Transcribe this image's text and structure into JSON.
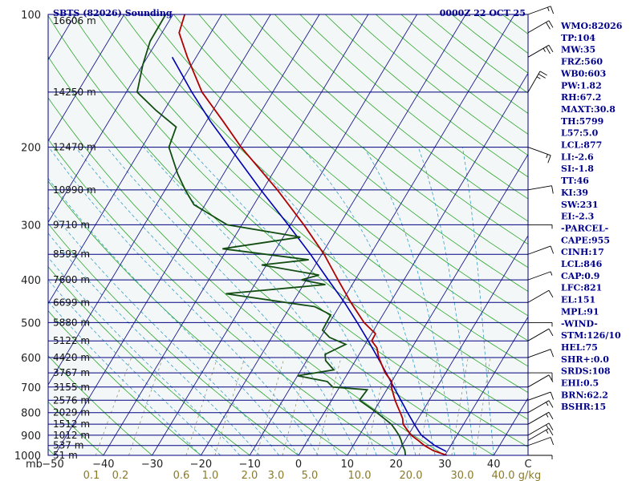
{
  "header": {
    "left_title": "SBTS (82026) Sounding",
    "right_title": "0000Z 22 OCT 25"
  },
  "indices": [
    "WMO:82026",
    "TP:104",
    "MW:35",
    "FRZ:560",
    "WB0:603",
    "PW:1.82",
    "RH:67.2",
    "MAXT:30.8",
    "TH:5799",
    "L57:5.0",
    "LCL:877",
    "LI:-2.6",
    "SI:-1.8",
    "TT:46",
    "KI:39",
    "SW:231",
    "EI:-2.3",
    "-PARCEL-",
    "CAPE:955",
    "CINH:17",
    "LCL:846",
    "CAP:0.9",
    "LFC:821",
    "EL:151",
    "MPL:91",
    "-WIND-",
    "STM:126/10",
    "HEL:75",
    "SHR+:0.0",
    "SRDS:108",
    "EHI:0.5",
    "BRN:62.2",
    "BSHR:15"
  ],
  "colors": {
    "background": "#ffffff",
    "plot_background": "#f4f7f8",
    "isobar": "#00007f",
    "isotherm": "#1a1a8c",
    "dry_adiabat": "#2aa82a",
    "moist_adiabat": "#3aa0c8",
    "mixing_ratio": "#8b8b6a",
    "temperature": "#b00000",
    "dewpoint": "#124d12",
    "parcel": "#0000b4",
    "wind": "#000000",
    "text": "#00008b"
  },
  "chart_data": {
    "type": "skew-t",
    "xlabel": "C",
    "pressure_unit": "mb",
    "mixing_unit": "g/kg",
    "pressure_levels": [
      100,
      150,
      200,
      250,
      300,
      350,
      400,
      450,
      500,
      550,
      600,
      650,
      700,
      750,
      800,
      850,
      900,
      950,
      1000
    ],
    "pressure_tick_labels": [
      {
        "p": 100,
        "text": "100"
      },
      {
        "p": 200,
        "text": "200"
      },
      {
        "p": 300,
        "text": "300"
      },
      {
        "p": 400,
        "text": "400"
      },
      {
        "p": 500,
        "text": "500"
      },
      {
        "p": 600,
        "text": "600"
      },
      {
        "p": 700,
        "text": "700"
      },
      {
        "p": 800,
        "text": "800"
      },
      {
        "p": 900,
        "text": "900"
      },
      {
        "p": 1000,
        "text": "1000"
      }
    ],
    "height_labels": [
      {
        "p": 100,
        "text": "16606 m"
      },
      {
        "p": 150,
        "text": "14250 m"
      },
      {
        "p": 200,
        "text": "12470 m"
      },
      {
        "p": 250,
        "text": "10990 m"
      },
      {
        "p": 300,
        "text": "9710 m"
      },
      {
        "p": 350,
        "text": "8593 m"
      },
      {
        "p": 400,
        "text": "7600 m"
      },
      {
        "p": 450,
        "text": "6699 m"
      },
      {
        "p": 500,
        "text": "5880 m"
      },
      {
        "p": 550,
        "text": "5122 m"
      },
      {
        "p": 600,
        "text": "4420 m"
      },
      {
        "p": 650,
        "text": "3767 m"
      },
      {
        "p": 700,
        "text": "3155 m"
      },
      {
        "p": 750,
        "text": "2576 m"
      },
      {
        "p": 800,
        "text": "2029 m"
      },
      {
        "p": 850,
        "text": "1512 m"
      },
      {
        "p": 900,
        "text": "1012 m"
      },
      {
        "p": 950,
        "text": "537 m"
      },
      {
        "p": 1000,
        "text": "51 m"
      }
    ],
    "temperature_ticks": [
      -40,
      -30,
      -20,
      -10,
      0,
      10,
      20,
      30,
      40
    ],
    "temperature_tick_labels": [
      "−40",
      "−30",
      "−20",
      "−10",
      "0",
      "10",
      "20",
      "30",
      "40"
    ],
    "left_tick_labels": [
      "mb",
      "−50"
    ],
    "mixing_ratio_labels": [
      {
        "w": 0.1,
        "text": "0.1"
      },
      {
        "w": 0.2,
        "text": "0.2"
      },
      {
        "w": 0.6,
        "text": "0.6"
      },
      {
        "w": 1.0,
        "text": "1.0"
      },
      {
        "w": 2.0,
        "text": "2.0"
      },
      {
        "w": 3.0,
        "text": "3.0"
      },
      {
        "w": 5.0,
        "text": "5.0"
      },
      {
        "w": 10.0,
        "text": "10.0"
      },
      {
        "w": 20.0,
        "text": "20.0"
      },
      {
        "w": 30.0,
        "text": "30.0"
      },
      {
        "w": 40.0,
        "text": "40.0"
      }
    ],
    "temperature_profile": [
      {
        "p": 1000,
        "t": 30.4
      },
      {
        "p": 975,
        "t": 27.0
      },
      {
        "p": 950,
        "t": 24.6
      },
      {
        "p": 925,
        "t": 22.7
      },
      {
        "p": 900,
        "t": 20.6
      },
      {
        "p": 875,
        "t": 19.1
      },
      {
        "p": 850,
        "t": 17.6
      },
      {
        "p": 825,
        "t": 16.8
      },
      {
        "p": 800,
        "t": 15.6
      },
      {
        "p": 775,
        "t": 14.3
      },
      {
        "p": 750,
        "t": 13.0
      },
      {
        "p": 700,
        "t": 10.6
      },
      {
        "p": 680,
        "t": 10.0
      },
      {
        "p": 650,
        "t": 7.6
      },
      {
        "p": 600,
        "t": 4.4
      },
      {
        "p": 570,
        "t": 2.8
      },
      {
        "p": 550,
        "t": 0.9
      },
      {
        "p": 530,
        "t": 0.8
      },
      {
        "p": 500,
        "t": -2.9
      },
      {
        "p": 450,
        "t": -8.1
      },
      {
        "p": 400,
        "t": -13.5
      },
      {
        "p": 370,
        "t": -17.0
      },
      {
        "p": 350,
        "t": -19.5
      },
      {
        "p": 300,
        "t": -27.3
      },
      {
        "p": 250,
        "t": -37.0
      },
      {
        "p": 200,
        "t": -49.7
      },
      {
        "p": 175,
        "t": -56.5
      },
      {
        "p": 150,
        "t": -64.5
      },
      {
        "p": 125,
        "t": -71.8
      },
      {
        "p": 110,
        "t": -76.5
      },
      {
        "p": 100,
        "t": -77.6
      }
    ],
    "dewpoint_profile": [
      {
        "p": 1000,
        "t": 21.9
      },
      {
        "p": 975,
        "t": 21.2
      },
      {
        "p": 950,
        "t": 20.1
      },
      {
        "p": 925,
        "t": 19.2
      },
      {
        "p": 900,
        "t": 18.1
      },
      {
        "p": 875,
        "t": 16.7
      },
      {
        "p": 850,
        "t": 15.2
      },
      {
        "p": 800,
        "t": 10.8
      },
      {
        "p": 750,
        "t": 5.7
      },
      {
        "p": 710,
        "t": 6.0
      },
      {
        "p": 700,
        "t": -1.4
      },
      {
        "p": 680,
        "t": -3.2
      },
      {
        "p": 660,
        "t": -10.0
      },
      {
        "p": 640,
        "t": -3.3
      },
      {
        "p": 610,
        "t": -6.1
      },
      {
        "p": 590,
        "t": -7.0
      },
      {
        "p": 560,
        "t": -4.0
      },
      {
        "p": 540,
        "t": -8.2
      },
      {
        "p": 520,
        "t": -10.5
      },
      {
        "p": 480,
        "t": -10.7
      },
      {
        "p": 460,
        "t": -15.0
      },
      {
        "p": 430,
        "t": -34.8
      },
      {
        "p": 410,
        "t": -15.5
      },
      {
        "p": 400,
        "t": -21.0
      },
      {
        "p": 390,
        "t": -18.0
      },
      {
        "p": 370,
        "t": -31.0
      },
      {
        "p": 360,
        "t": -22.0
      },
      {
        "p": 340,
        "t": -41.0
      },
      {
        "p": 320,
        "t": -26.5
      },
      {
        "p": 300,
        "t": -43.0
      },
      {
        "p": 270,
        "t": -52.3
      },
      {
        "p": 250,
        "t": -55.9
      },
      {
        "p": 230,
        "t": -59.4
      },
      {
        "p": 200,
        "t": -64.5
      },
      {
        "p": 180,
        "t": -65.5
      },
      {
        "p": 165,
        "t": -71.7
      },
      {
        "p": 150,
        "t": -77.8
      },
      {
        "p": 130,
        "t": -80.0
      },
      {
        "p": 115,
        "t": -81.4
      },
      {
        "p": 100,
        "t": -81.5
      }
    ],
    "parcel_profile": [
      {
        "p": 980,
        "t": 29.8
      },
      {
        "p": 950,
        "t": 26.7
      },
      {
        "p": 900,
        "t": 22.7
      },
      {
        "p": 877,
        "t": 21.4
      },
      {
        "p": 850,
        "t": 19.9
      },
      {
        "p": 800,
        "t": 17.1
      },
      {
        "p": 750,
        "t": 14.2
      },
      {
        "p": 700,
        "t": 11.1
      },
      {
        "p": 650,
        "t": 7.8
      },
      {
        "p": 600,
        "t": 4.2
      },
      {
        "p": 550,
        "t": 0.2
      },
      {
        "p": 500,
        "t": -4.3
      },
      {
        "p": 450,
        "t": -9.4
      },
      {
        "p": 400,
        "t": -15.5
      },
      {
        "p": 350,
        "t": -22.3
      },
      {
        "p": 300,
        "t": -30.5
      },
      {
        "p": 250,
        "t": -40.4
      },
      {
        "p": 200,
        "t": -52.1
      },
      {
        "p": 175,
        "t": -59.1
      },
      {
        "p": 150,
        "t": -66.6
      },
      {
        "p": 125,
        "t": -74.9
      }
    ],
    "wind_barbs": [
      {
        "p": 1000,
        "dir": 90,
        "spd": 5
      },
      {
        "p": 950,
        "dir": 70,
        "spd": 10
      },
      {
        "p": 925,
        "dir": 60,
        "spd": 15
      },
      {
        "p": 900,
        "dir": 60,
        "spd": 15
      },
      {
        "p": 850,
        "dir": 60,
        "spd": 15
      },
      {
        "p": 800,
        "dir": 60,
        "spd": 15
      },
      {
        "p": 750,
        "dir": 70,
        "spd": 10
      },
      {
        "p": 700,
        "dir": 60,
        "spd": 10
      },
      {
        "p": 650,
        "dir": 90,
        "spd": 10
      },
      {
        "p": 600,
        "dir": 70,
        "spd": 10
      },
      {
        "p": 550,
        "dir": 60,
        "spd": 10
      },
      {
        "p": 500,
        "dir": 90,
        "spd": 5
      },
      {
        "p": 450,
        "dir": 60,
        "spd": 10
      },
      {
        "p": 400,
        "dir": 70,
        "spd": 5
      },
      {
        "p": 350,
        "dir": 70,
        "spd": 10
      },
      {
        "p": 300,
        "dir": 90,
        "spd": 5
      },
      {
        "p": 250,
        "dir": 80,
        "spd": 10
      },
      {
        "p": 200,
        "dir": 110,
        "spd": 15
      },
      {
        "p": 150,
        "dir": 30,
        "spd": 25
      },
      {
        "p": 125,
        "dir": 60,
        "spd": 25
      },
      {
        "p": 110,
        "dir": 60,
        "spd": 20
      },
      {
        "p": 100,
        "dir": 70,
        "spd": 15
      }
    ]
  }
}
